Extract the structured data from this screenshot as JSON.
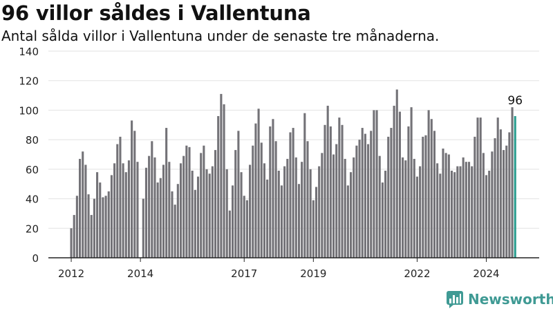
{
  "header": {
    "title": "96 villor såldes i Vallentuna",
    "subtitle": "Antal sålda villor i Vallentuna under de senaste tre månaderna."
  },
  "brand": {
    "name": "Newsworthy"
  },
  "colors": {
    "bar": "#737277",
    "highlight": "#2a9d8f",
    "axis": "#222222",
    "grid": "#e2e2e2"
  },
  "chart_data": {
    "type": "bar",
    "title": "96 villor såldes i Vallentuna",
    "subtitle": "Antal sålda villor i Vallentuna under de senaste tre månaderna.",
    "xlabel": "",
    "ylabel": "",
    "ylim": [
      0,
      140
    ],
    "yticks": [
      0,
      20,
      40,
      60,
      80,
      100,
      120,
      140
    ],
    "grid": "horizontal",
    "x_start": "2012-01",
    "x_tick_labels": [
      {
        "label": "2012",
        "index": 0
      },
      {
        "label": "2014",
        "index": 24
      },
      {
        "label": "2017",
        "index": 60
      },
      {
        "label": "2019",
        "index": 84
      },
      {
        "label": "2022",
        "index": 120
      },
      {
        "label": "2024",
        "index": 144
      }
    ],
    "highlight_label": "96",
    "values": [
      20,
      29,
      42,
      67,
      72,
      63,
      43,
      29,
      40,
      58,
      51,
      41,
      42,
      45,
      56,
      64,
      77,
      82,
      64,
      58,
      66,
      93,
      86,
      65,
      0,
      40,
      61,
      69,
      79,
      68,
      51,
      54,
      63,
      88,
      65,
      45,
      36,
      50,
      64,
      69,
      76,
      75,
      59,
      46,
      55,
      71,
      76,
      60,
      57,
      62,
      73,
      96,
      111,
      104,
      60,
      32,
      49,
      73,
      86,
      58,
      42,
      39,
      63,
      76,
      91,
      101,
      78,
      64,
      53,
      89,
      94,
      79,
      59,
      49,
      62,
      67,
      85,
      88,
      68,
      50,
      65,
      98,
      79,
      60,
      39,
      48,
      62,
      71,
      90,
      103,
      89,
      70,
      77,
      95,
      90,
      67,
      49,
      58,
      68,
      76,
      80,
      88,
      84,
      77,
      86,
      100,
      100,
      69,
      51,
      59,
      82,
      88,
      103,
      114,
      99,
      68,
      66,
      89,
      102,
      67,
      55,
      62,
      82,
      83,
      100,
      94,
      86,
      64,
      57,
      74,
      71,
      70,
      59,
      58,
      62,
      62,
      68,
      65,
      65,
      62,
      82,
      95,
      95,
      71,
      56,
      59,
      72,
      81,
      95,
      87,
      73,
      76,
      85,
      102,
      96
    ]
  }
}
